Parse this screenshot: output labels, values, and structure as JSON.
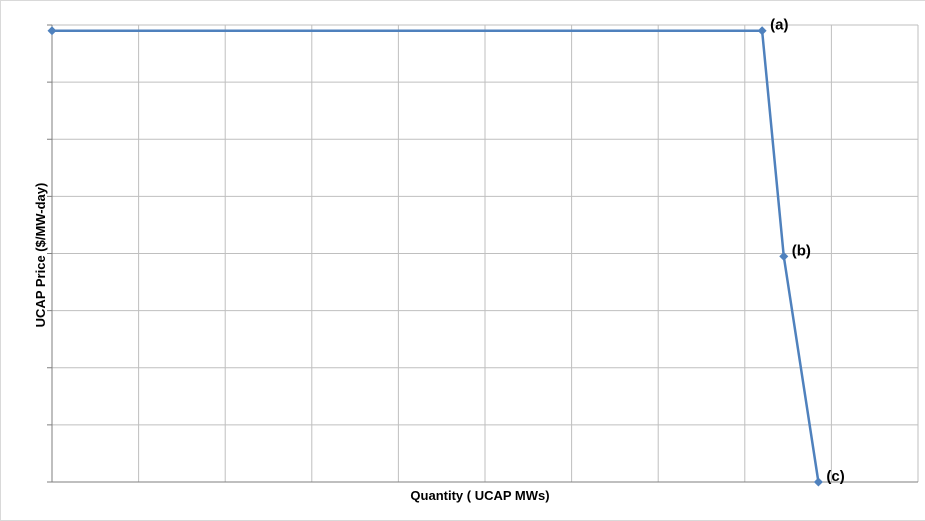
{
  "chart_data": {
    "type": "line",
    "title": "",
    "xlabel": "Quantity ( UCAP MWs)",
    "ylabel": "UCAP Price ($/MW-day)",
    "xlim": [
      0,
      10
    ],
    "ylim": [
      0,
      8
    ],
    "grid": true,
    "tick_labels_shown": false,
    "series_color": "#4f81bd",
    "grid_color": "#bfbfbf",
    "series": [
      {
        "points": [
          {
            "x": 0,
            "y": 7.9,
            "label": ""
          },
          {
            "x": 8.2,
            "y": 7.9,
            "label": "(a)"
          },
          {
            "x": 8.45,
            "y": 3.95,
            "label": "(b)"
          },
          {
            "x": 8.85,
            "y": 0,
            "label": "(c)"
          }
        ]
      }
    ]
  }
}
